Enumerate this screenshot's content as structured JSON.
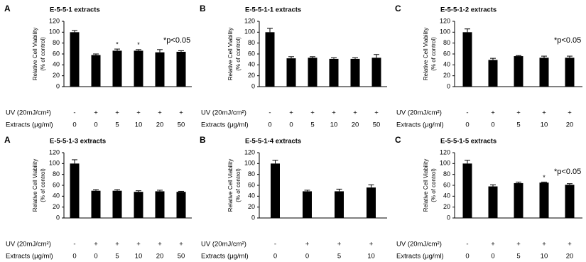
{
  "chart_data": [
    {
      "type": "bar",
      "panel": "A",
      "title": "E-5-5-1 extracts",
      "ylabel": [
        "Relative Cell Viability",
        "(% of control)"
      ],
      "ylim": [
        0,
        120
      ],
      "yticks": [
        0,
        20,
        40,
        60,
        80,
        100,
        120
      ],
      "color": "#000000",
      "row_labels": [
        "UV (20mJ/cm²)",
        "Extracts (μg/ml)"
      ],
      "uv": [
        "-",
        "+",
        "+",
        "+",
        "+",
        "+"
      ],
      "categories": [
        "0",
        "0",
        "5",
        "10",
        "20",
        "50"
      ],
      "values": [
        100,
        58,
        66,
        66,
        63,
        64
      ],
      "errors": [
        3,
        2,
        3,
        2,
        5,
        2
      ],
      "significance": [
        null,
        null,
        "*",
        "*",
        null,
        null
      ],
      "annotation": "*p<0.05"
    },
    {
      "type": "bar",
      "panel": "B",
      "title": "E-5-5-1-1 extracts",
      "ylabel": [
        "Relative Cell Viability",
        "(% of control)"
      ],
      "ylim": [
        0,
        120
      ],
      "yticks": [
        0,
        20,
        40,
        60,
        80,
        100,
        120
      ],
      "color": "#000000",
      "row_labels": [
        "UV (20mJ/cm²)",
        "Extracts (μg/ml)"
      ],
      "uv": [
        "-",
        "+",
        "+",
        "+",
        "+",
        "+"
      ],
      "categories": [
        "0",
        "0",
        "5",
        "10",
        "20",
        "50"
      ],
      "values": [
        100,
        52,
        53,
        51,
        51,
        53
      ],
      "errors": [
        7,
        3,
        2,
        2,
        2,
        6
      ]
    },
    {
      "type": "bar",
      "panel": "C",
      "title": "E-5-5-1-2 extracts",
      "ylabel": [
        "Relative Cell Viability",
        "(% of control)"
      ],
      "ylim": [
        0,
        120
      ],
      "yticks": [
        0,
        20,
        40,
        60,
        80,
        100,
        120
      ],
      "color": "#000000",
      "row_labels": [
        "UV (20mJ/cm²)",
        "Extracts (μg/ml)"
      ],
      "uv": [
        "-",
        "+",
        "+",
        "+",
        "+"
      ],
      "categories": [
        "0",
        "0",
        "5",
        "10",
        "20"
      ],
      "values": [
        100,
        49,
        56,
        53,
        53
      ],
      "errors": [
        6,
        3,
        1,
        3,
        3
      ],
      "annotation": "*p<0.05"
    },
    {
      "type": "bar",
      "panel": "A",
      "title": "E-5-5-1-3 extracts",
      "ylabel": [
        "Relative Cell Viability",
        "(% of control)"
      ],
      "ylim": [
        0,
        120
      ],
      "yticks": [
        0,
        20,
        40,
        60,
        80,
        100,
        120
      ],
      "color": "#000000",
      "row_labels": [
        "UV (20mJ/cm²)",
        "Extracts (μg/ml)"
      ],
      "uv": [
        "-",
        "+",
        "+",
        "+",
        "+",
        "+"
      ],
      "categories": [
        "0",
        "0",
        "5",
        "10",
        "20",
        "50"
      ],
      "values": [
        100,
        50,
        50,
        48,
        49,
        48
      ],
      "errors": [
        7,
        2,
        2,
        2,
        2,
        1
      ]
    },
    {
      "type": "bar",
      "panel": "B",
      "title": "E-5-5-1-4 extracts",
      "ylabel": [
        "Relative Cell Viability",
        "(% of control)"
      ],
      "ylim": [
        0,
        120
      ],
      "yticks": [
        0,
        20,
        40,
        60,
        80,
        100,
        120
      ],
      "color": "#000000",
      "row_labels": [
        "UV (20mJ/cm²)",
        "Extracts (μg/ml)"
      ],
      "uv": [
        "-",
        "+",
        "+",
        "+"
      ],
      "categories": [
        "0",
        "0",
        "5",
        "10"
      ],
      "values": [
        100,
        49,
        49,
        56
      ],
      "errors": [
        6,
        2,
        4,
        5
      ]
    },
    {
      "type": "bar",
      "panel": "C",
      "title": "E-5-5-1-5 extracts",
      "ylabel": [
        "Relative Cell Viability",
        "(% of control)"
      ],
      "ylim": [
        0,
        120
      ],
      "yticks": [
        0,
        20,
        40,
        60,
        80,
        100,
        120
      ],
      "color": "#000000",
      "row_labels": [
        "UV (20mJ/cm²)",
        "Extracts (μg/ml)"
      ],
      "uv": [
        "-",
        "+",
        "+",
        "+",
        "+"
      ],
      "categories": [
        "0",
        "0",
        "5",
        "10",
        "20"
      ],
      "values": [
        100,
        58,
        64,
        65,
        61
      ],
      "errors": [
        6,
        3,
        2,
        1,
        2
      ],
      "significance": [
        null,
        null,
        null,
        "*",
        null
      ],
      "annotation": "*p<0.05"
    }
  ]
}
